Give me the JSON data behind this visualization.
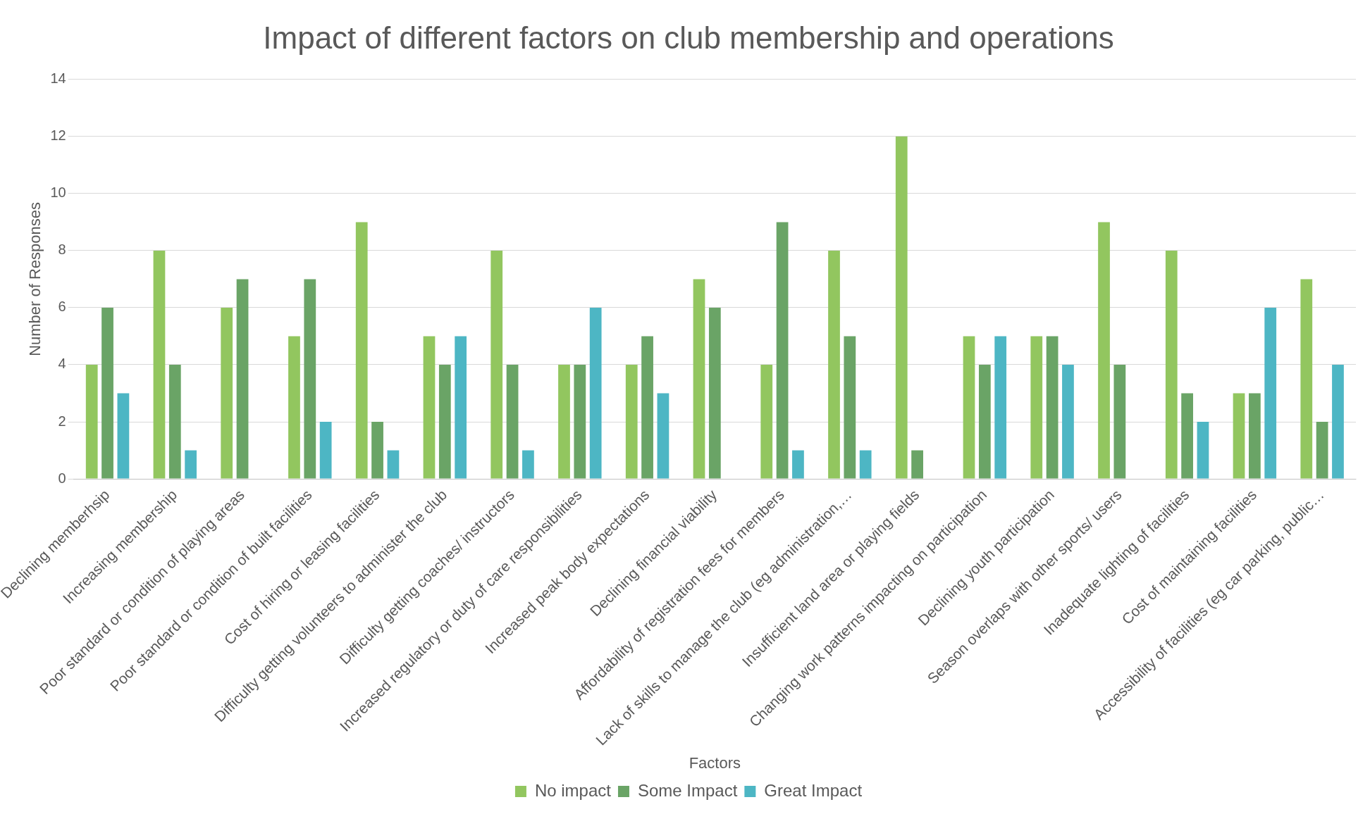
{
  "chart_data": {
    "type": "bar",
    "title": "Impact of different factors on club membership and operations",
    "xlabel": "Factors",
    "ylabel": "Number of Responses",
    "categories": [
      "Declining memberhsip",
      "Increasing membership",
      "Poor standard or condition of playing areas",
      "Poor standard or condition of built facilities",
      "Cost of hiring or leasing facilities",
      "Difficulty getting volunteers to administer the club",
      "Difficulty getting coaches/ instructors",
      "Increased regulatory or duty of care responsibilities",
      "Increased peak body expectations",
      "Declining financial viability",
      "Affordability of registration fees for members",
      "Lack of skills to manage the club (eg administration,…",
      "Insufficient land area or playing fields",
      "Changing work patterns impacting on participation",
      "Declining youth participation",
      "Season overlaps with other sports/ users",
      "Inadequate lighting of facilities",
      "Cost of maintaining facilities",
      "Accessibility of facilities (eg car parking, public…"
    ],
    "series": [
      {
        "name": "No impact",
        "color": "#92c65f",
        "values": [
          4,
          8,
          6,
          5,
          9,
          5,
          8,
          4,
          4,
          7,
          4,
          8,
          12,
          5,
          5,
          9,
          8,
          3,
          7
        ]
      },
      {
        "name": "Some Impact",
        "color": "#6aa466",
        "values": [
          6,
          4,
          7,
          7,
          2,
          4,
          4,
          4,
          5,
          6,
          9,
          5,
          1,
          4,
          5,
          4,
          3,
          3,
          2
        ]
      },
      {
        "name": "Great Impact",
        "color": "#4db6c4",
        "values": [
          3,
          1,
          0,
          2,
          1,
          5,
          1,
          6,
          3,
          0,
          1,
          1,
          0,
          5,
          4,
          0,
          2,
          6,
          4
        ]
      }
    ],
    "ylim": [
      0,
      14
    ],
    "yticks": [
      0,
      2,
      4,
      6,
      8,
      10,
      12,
      14
    ],
    "grid": "y",
    "legend": "bottom"
  }
}
